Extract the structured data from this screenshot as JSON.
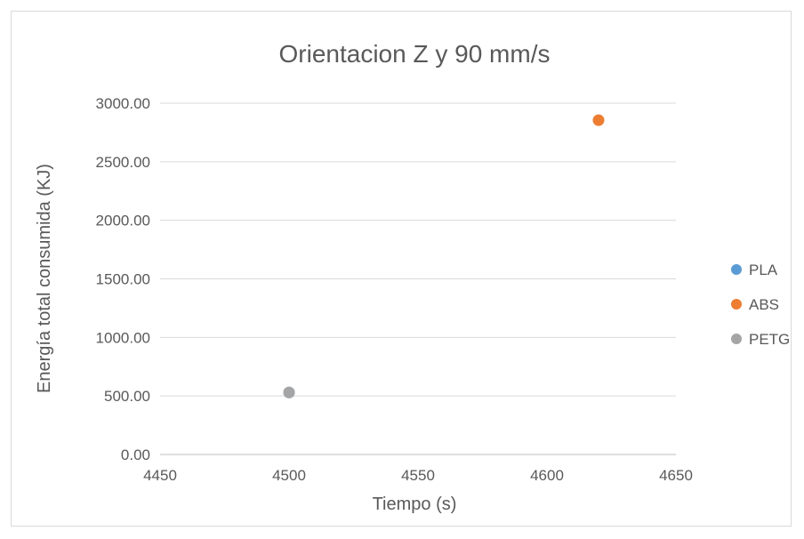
{
  "chart_data": {
    "type": "scatter",
    "title": "Orientacion Z y 90 mm/s",
    "xlabel": "Tiempo (s)",
    "ylabel": "Energía total consumida (KJ)",
    "xlim": [
      4450,
      4650
    ],
    "ylim": [
      0,
      3000
    ],
    "x_ticks": [
      4450,
      4500,
      4550,
      4600,
      4650
    ],
    "y_ticks": [
      "0.00",
      "500.00",
      "1000.00",
      "1500.00",
      "2000.00",
      "2500.00",
      "3000.00"
    ],
    "y_tick_values": [
      0,
      500,
      1000,
      1500,
      2000,
      2500,
      3000
    ],
    "grid": "horizontal",
    "legend_position": "right",
    "series": [
      {
        "name": "PLA",
        "color": "#5b9bd5",
        "points": [
          [
            4500,
            530
          ]
        ]
      },
      {
        "name": "ABS",
        "color": "#ed7d31",
        "points": [
          [
            4620,
            2855
          ]
        ]
      },
      {
        "name": "PETG",
        "color": "#a5a5a5",
        "points": [
          [
            4500,
            530
          ]
        ]
      }
    ]
  }
}
